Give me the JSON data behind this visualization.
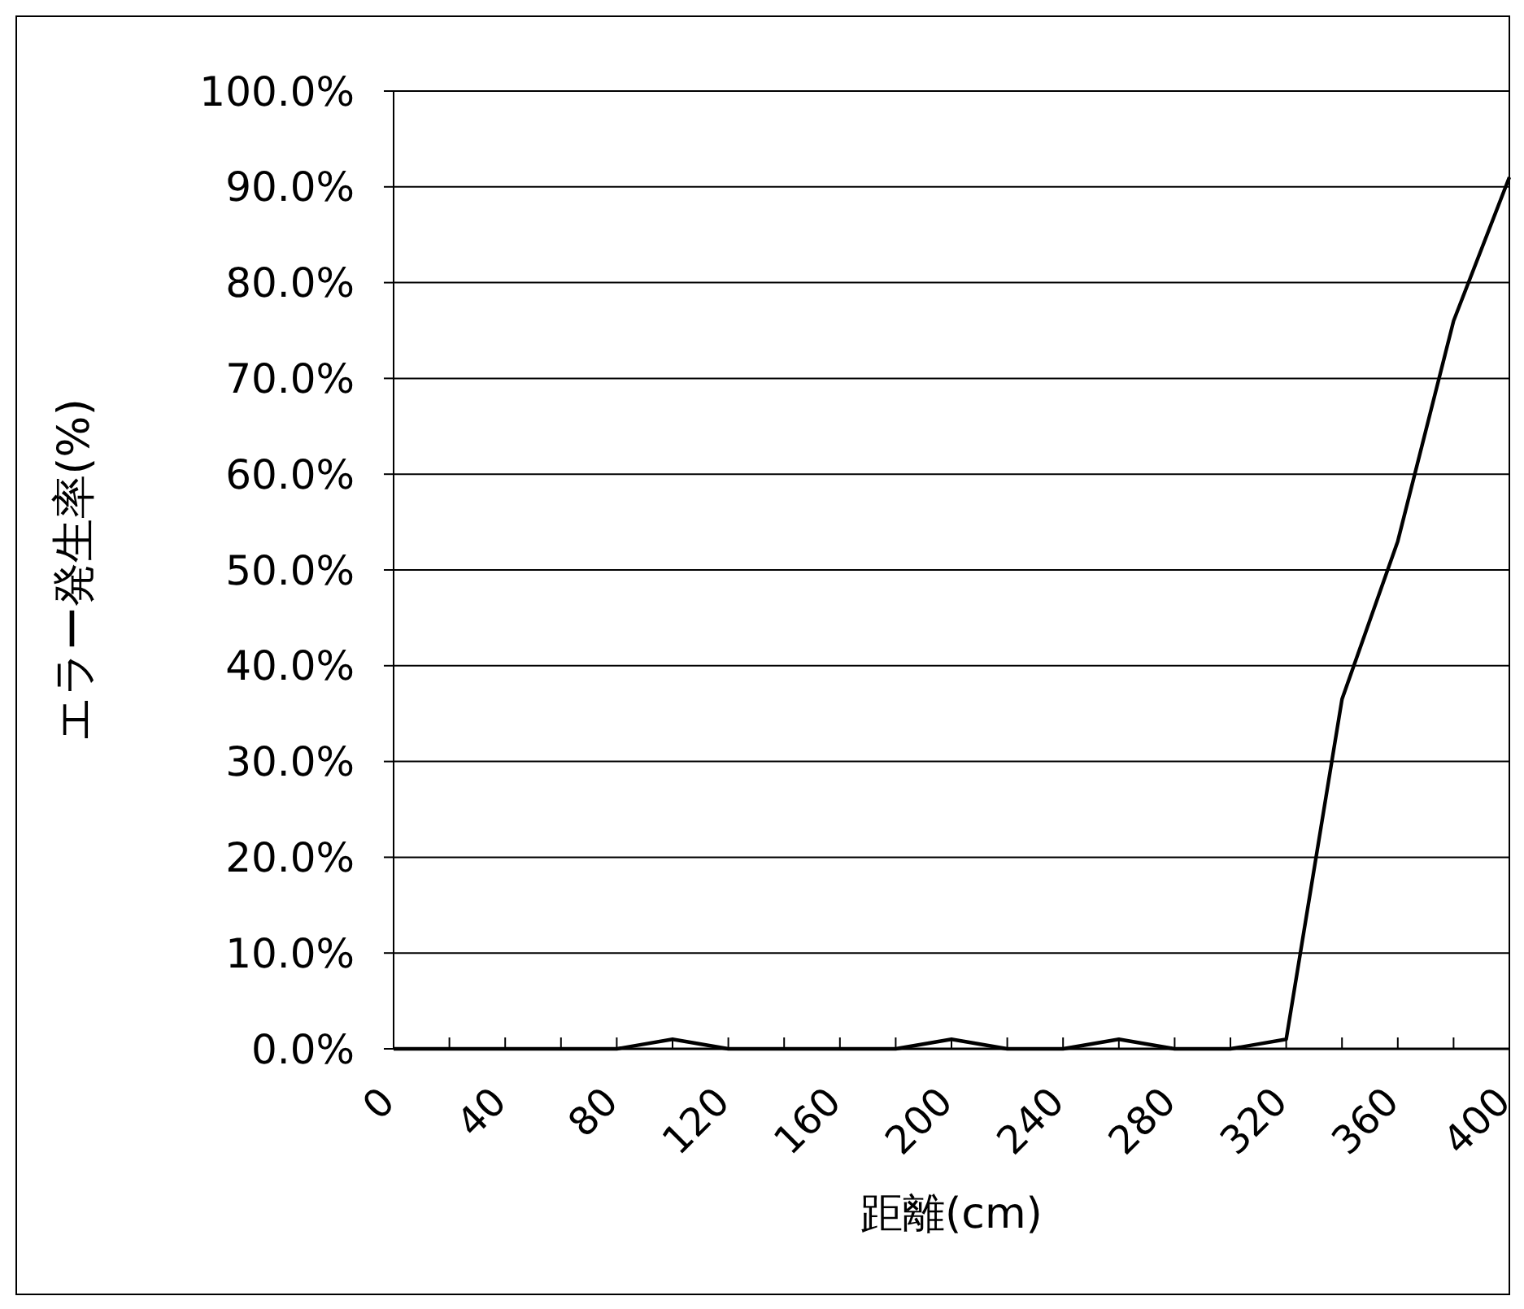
{
  "chart_data": {
    "type": "line",
    "xlabel": "距離(cm)",
    "ylabel": "エラー発生率(%)",
    "categories": [
      "0",
      null,
      "40",
      null,
      "80",
      null,
      "120",
      null,
      "160",
      null,
      "200",
      null,
      "240",
      null,
      "280",
      null,
      "320",
      null,
      "360",
      null,
      "400"
    ],
    "series": [
      {
        "color": "#000000",
        "values": [
          0,
          0,
          0,
          0,
          0,
          1,
          0,
          0,
          0,
          0,
          1,
          0,
          0,
          1,
          0,
          0,
          1,
          36.5,
          53,
          76,
          91
        ]
      }
    ],
    "ylim": [
      0,
      100
    ],
    "yticks": [
      {
        "value": 0,
        "label": "0.0%"
      },
      {
        "value": 10,
        "label": "10.0%"
      },
      {
        "value": 20,
        "label": "20.0%"
      },
      {
        "value": 30,
        "label": "30.0%"
      },
      {
        "value": 40,
        "label": "40.0%"
      },
      {
        "value": 50,
        "label": "50.0%"
      },
      {
        "value": 60,
        "label": "60.0%"
      },
      {
        "value": 70,
        "label": "70.0%"
      },
      {
        "value": 80,
        "label": "80.0%"
      },
      {
        "value": 90,
        "label": "90.0%"
      },
      {
        "value": 100,
        "label": "100.0%"
      }
    ],
    "grid": "y",
    "marker": "none",
    "line_style": "solid"
  }
}
